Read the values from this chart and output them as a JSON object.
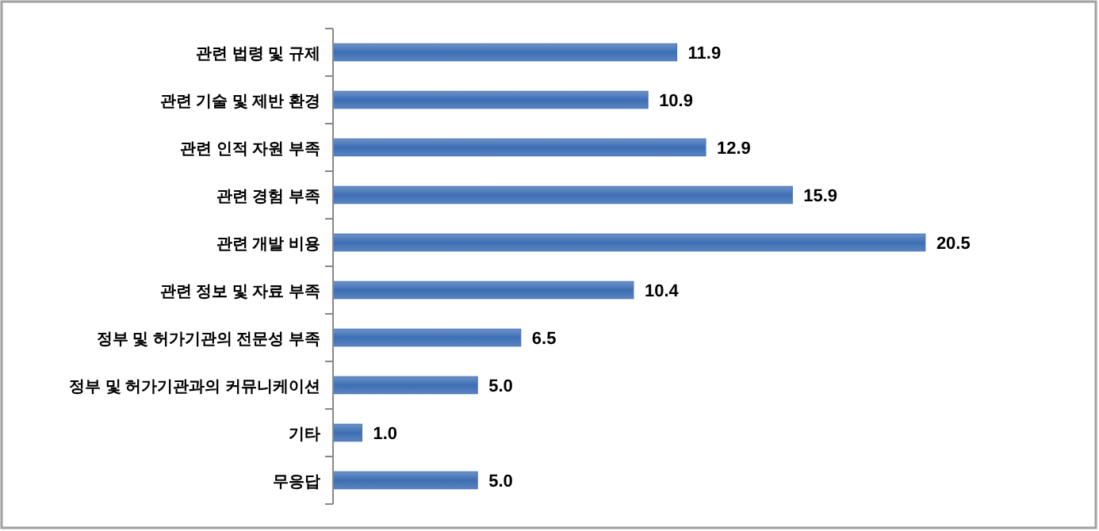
{
  "chart_data": {
    "type": "bar",
    "orientation": "horizontal",
    "categories": [
      "관련 법령 및 규제",
      "관련 기술 및 제반 환경",
      "관련 인적 자원 부족",
      "관련 경험 부족",
      "관련 개발 비용",
      "관련 정보 및 자료 부족",
      "정부 및 허가기관의 전문성 부족",
      "정부 및 허가기관과의 커뮤니케이션",
      "기타",
      "무응답"
    ],
    "values": [
      11.9,
      10.9,
      12.9,
      15.9,
      20.5,
      10.4,
      6.5,
      5.0,
      1.0,
      5.0
    ],
    "value_labels": [
      "11.9",
      "10.9",
      "12.9",
      "15.9",
      "20.5",
      "10.4",
      "6.5",
      "5.0",
      "1.0",
      "5.0"
    ],
    "color": "#3d6eb4"
  }
}
